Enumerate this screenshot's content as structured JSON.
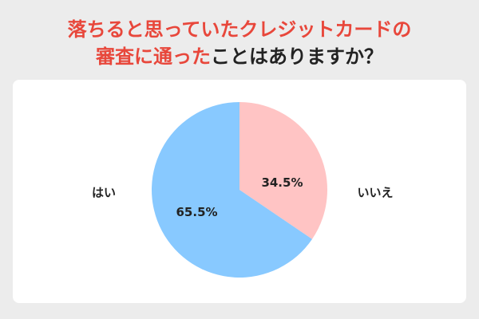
{
  "chart_data": {
    "type": "pie",
    "title": [
      [
        {
          "text": "落ちると思っていたクレジットカードの",
          "color": "#e8473b"
        }
      ],
      [
        {
          "text": "審査に通った",
          "color": "#e8473b"
        },
        {
          "text": "ことはありますか？",
          "color": "#222222"
        }
      ]
    ],
    "categories": [
      "いいえ",
      "はい"
    ],
    "values": [
      34.5,
      65.5
    ],
    "value_labels": [
      "34.5%",
      "65.5%"
    ],
    "colors": [
      "#ffc4c4",
      "#88c9ff"
    ]
  }
}
